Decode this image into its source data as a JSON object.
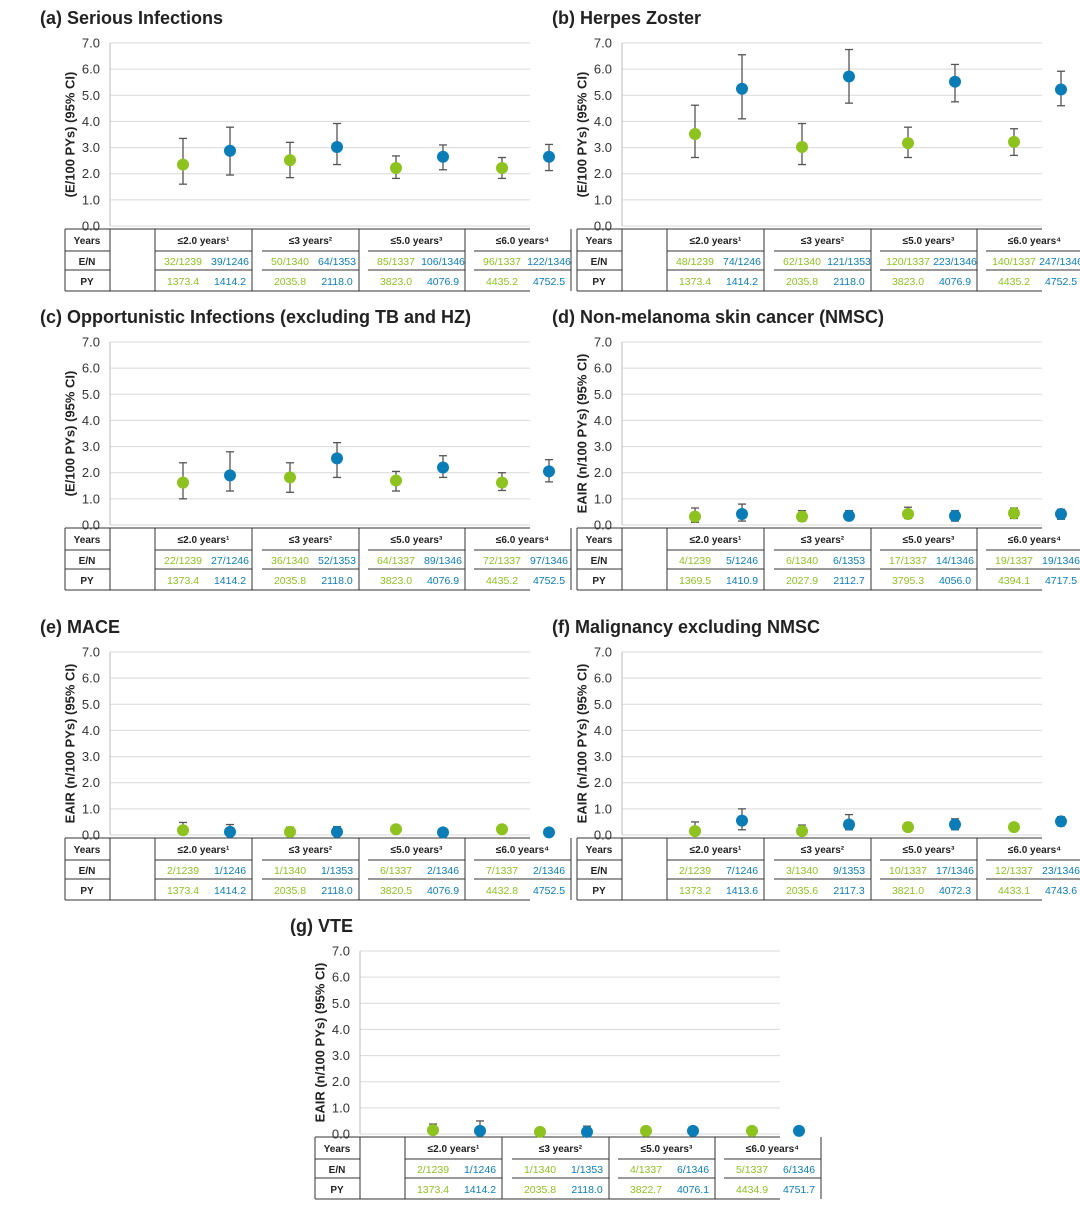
{
  "colors": {
    "green": "#8dc21f",
    "blue": "#0a7db7",
    "grid": "#d9d9d9",
    "errbar": "#555555"
  },
  "row_labels": {
    "years": "Years",
    "en": "E/N",
    "py": "PY"
  },
  "chart_data": [
    {
      "id": "a",
      "type": "scatter",
      "title": "(a) Serious Infections",
      "ylabel": "(E/100 PYs) (95% CI)",
      "ylim": [
        0,
        7
      ],
      "grid": true,
      "yticks": [
        "0.0",
        "1.0",
        "2.0",
        "3.0",
        "4.0",
        "5.0",
        "6.0",
        "7.0"
      ],
      "categories": [
        "≤2.0 years¹",
        "≤3 years²",
        "≤5.0 years³",
        "≤6.0 years⁴"
      ],
      "series": [
        {
          "color": "green",
          "values": [
            2.35,
            2.52,
            2.22,
            2.22
          ],
          "lo": [
            1.6,
            1.85,
            1.82,
            1.82
          ],
          "hi": [
            3.35,
            3.2,
            2.68,
            2.62
          ]
        },
        {
          "color": "blue",
          "values": [
            2.88,
            3.02,
            2.65,
            2.65
          ],
          "lo": [
            1.95,
            2.35,
            2.15,
            2.12
          ],
          "hi": [
            3.78,
            3.92,
            3.1,
            3.12
          ]
        }
      ],
      "table": {
        "en": [
          [
            "32/1239",
            "39/1246"
          ],
          [
            "50/1340",
            "64/1353"
          ],
          [
            "85/1337",
            "106/1346"
          ],
          [
            "96/1337",
            "122/1346"
          ]
        ],
        "py": [
          [
            "1373.4",
            "1414.2"
          ],
          [
            "2035.8",
            "2118.0"
          ],
          [
            "3823.0",
            "4076.9"
          ],
          [
            "4435.2",
            "4752.5"
          ]
        ]
      }
    },
    {
      "id": "b",
      "type": "scatter",
      "title": "(b) Herpes Zoster",
      "ylabel": "(E/100 PYs) (95% CI)",
      "ylim": [
        0,
        7
      ],
      "grid": true,
      "yticks": [
        "0.0",
        "1.0",
        "2.0",
        "3.0",
        "4.0",
        "5.0",
        "6.0",
        "7.0"
      ],
      "categories": [
        "≤2.0 years¹",
        "≤3 years²",
        "≤5.0 years³",
        "≤6.0 years⁴"
      ],
      "series": [
        {
          "color": "green",
          "values": [
            3.52,
            3.02,
            3.17,
            3.22
          ],
          "lo": [
            2.62,
            2.35,
            2.62,
            2.7
          ],
          "hi": [
            4.62,
            3.92,
            3.78,
            3.72
          ]
        },
        {
          "color": "blue",
          "values": [
            5.25,
            5.72,
            5.52,
            5.22
          ],
          "lo": [
            4.1,
            4.7,
            4.75,
            4.6
          ],
          "hi": [
            6.55,
            6.75,
            6.18,
            5.92
          ]
        }
      ],
      "table": {
        "en": [
          [
            "48/1239",
            "74/1246"
          ],
          [
            "62/1340",
            "121/1353"
          ],
          [
            "120/1337",
            "223/1346"
          ],
          [
            "140/1337",
            "247/1346"
          ]
        ],
        "py": [
          [
            "1373.4",
            "1414.2"
          ],
          [
            "2035.8",
            "2118.0"
          ],
          [
            "3823.0",
            "4076.9"
          ],
          [
            "4435.2",
            "4752.5"
          ]
        ]
      }
    },
    {
      "id": "c",
      "type": "scatter",
      "title": "(c) Opportunistic Infections (excluding TB and HZ)",
      "ylabel": "(E/100 PYs) (95% CI)",
      "ylim": [
        0,
        7
      ],
      "grid": true,
      "yticks": [
        "0.0",
        "1.0",
        "2.0",
        "3.0",
        "4.0",
        "5.0",
        "6.0",
        "7.0"
      ],
      "categories": [
        "≤2.0 years¹",
        "≤3 years²",
        "≤5.0 years³",
        "≤6.0 years⁴"
      ],
      "series": [
        {
          "color": "green",
          "values": [
            1.62,
            1.82,
            1.7,
            1.62
          ],
          "lo": [
            1.0,
            1.25,
            1.3,
            1.32
          ],
          "hi": [
            2.38,
            2.38,
            2.05,
            2.0
          ]
        },
        {
          "color": "blue",
          "values": [
            1.9,
            2.55,
            2.2,
            2.05
          ],
          "lo": [
            1.3,
            1.82,
            1.82,
            1.65
          ],
          "hi": [
            2.8,
            3.15,
            2.65,
            2.5
          ]
        }
      ],
      "table": {
        "en": [
          [
            "22/1239",
            "27/1246"
          ],
          [
            "36/1340",
            "52/1353"
          ],
          [
            "64/1337",
            "89/1346"
          ],
          [
            "72/1337",
            "97/1346"
          ]
        ],
        "py": [
          [
            "1373.4",
            "1414.2"
          ],
          [
            "2035.8",
            "2118.0"
          ],
          [
            "3823.0",
            "4076.9"
          ],
          [
            "4435.2",
            "4752.5"
          ]
        ]
      }
    },
    {
      "id": "d",
      "type": "scatter",
      "title": "(d) Non-melanoma skin cancer (NMSC)",
      "ylabel": "EAIR (n/100 PYs) (95% CI)",
      "ylim": [
        0,
        7
      ],
      "grid": true,
      "yticks": [
        "0.0",
        "1.0",
        "2.0",
        "3.0",
        "4.0",
        "5.0",
        "6.0",
        "7.0"
      ],
      "categories": [
        "≤2.0 years¹",
        "≤3 years²",
        "≤5.0 years³",
        "≤6.0 years⁴"
      ],
      "series": [
        {
          "color": "green",
          "values": [
            0.32,
            0.32,
            0.42,
            0.45
          ],
          "lo": [
            0.1,
            0.15,
            0.25,
            0.25
          ],
          "hi": [
            0.65,
            0.55,
            0.68,
            0.65
          ]
        },
        {
          "color": "blue",
          "values": [
            0.42,
            0.35,
            0.35,
            0.42
          ],
          "lo": [
            0.15,
            0.2,
            0.15,
            0.22
          ],
          "hi": [
            0.8,
            0.55,
            0.55,
            0.6
          ]
        }
      ],
      "table": {
        "en": [
          [
            "4/1239",
            "5/1246"
          ],
          [
            "6/1340",
            "6/1353"
          ],
          [
            "17/1337",
            "14/1346"
          ],
          [
            "19/1337",
            "19/1346"
          ]
        ],
        "py": [
          [
            "1369.5",
            "1410.9"
          ],
          [
            "2027.9",
            "2112.7"
          ],
          [
            "3795.3",
            "4056.0"
          ],
          [
            "4394.1",
            "4717.5"
          ]
        ]
      }
    },
    {
      "id": "e",
      "type": "scatter",
      "title": "(e) MACE",
      "ylabel": "EAIR (n/100 PYs) (95% CI)",
      "ylim": [
        0,
        7
      ],
      "grid": true,
      "yticks": [
        "0.0",
        "1.0",
        "2.0",
        "3.0",
        "4.0",
        "5.0",
        "6.0",
        "7.0"
      ],
      "categories": [
        "≤2.0 years¹",
        "≤3 years²",
        "≤5.0 years³",
        "≤6.0 years⁴"
      ],
      "series": [
        {
          "color": "green",
          "values": [
            0.18,
            0.12,
            0.22,
            0.22
          ],
          "lo": [
            0.05,
            0.02,
            0.1,
            0.12
          ],
          "hi": [
            0.48,
            0.3,
            0.32,
            0.32
          ]
        },
        {
          "color": "blue",
          "values": [
            0.12,
            0.12,
            0.1,
            0.1
          ],
          "lo": [
            0.02,
            0.02,
            0.02,
            0.02
          ],
          "hi": [
            0.4,
            0.32,
            0.2,
            0.2
          ]
        }
      ],
      "table": {
        "en": [
          [
            "2/1239",
            "1/1246"
          ],
          [
            "1/1340",
            "1/1353"
          ],
          [
            "6/1337",
            "2/1346"
          ],
          [
            "7/1337",
            "2/1346"
          ]
        ],
        "py": [
          [
            "1373.4",
            "1414.2"
          ],
          [
            "2035.8",
            "2118.0"
          ],
          [
            "3820.5",
            "4076.9"
          ],
          [
            "4432.8",
            "4752.5"
          ]
        ]
      }
    },
    {
      "id": "f",
      "type": "scatter",
      "title": "(f) Malignancy excluding NMSC",
      "ylabel": "EAIR (n/100 PYs) (95% CI)",
      "ylim": [
        0,
        7
      ],
      "grid": true,
      "yticks": [
        "0.0",
        "1.0",
        "2.0",
        "3.0",
        "4.0",
        "5.0",
        "6.0",
        "7.0"
      ],
      "categories": [
        "≤2.0 years¹",
        "≤3 years²",
        "≤5.0 years³",
        "≤6.0 years⁴"
      ],
      "series": [
        {
          "color": "green",
          "values": [
            0.15,
            0.15,
            0.3,
            0.3
          ],
          "lo": [
            0.02,
            0.05,
            0.15,
            0.15
          ],
          "hi": [
            0.5,
            0.38,
            0.45,
            0.45
          ]
        },
        {
          "color": "blue",
          "values": [
            0.55,
            0.4,
            0.4,
            0.52
          ],
          "lo": [
            0.2,
            0.2,
            0.2,
            0.35
          ],
          "hi": [
            1.0,
            0.78,
            0.62,
            0.7
          ]
        }
      ],
      "table": {
        "en": [
          [
            "2/1239",
            "7/1246"
          ],
          [
            "3/1340",
            "9/1353"
          ],
          [
            "10/1337",
            "17/1346"
          ],
          [
            "12/1337",
            "23/1346"
          ]
        ],
        "py": [
          [
            "1373.2",
            "1413.6"
          ],
          [
            "2035.6",
            "2117.3"
          ],
          [
            "3821.0",
            "4072.3"
          ],
          [
            "4433.1",
            "4743.6"
          ]
        ]
      }
    },
    {
      "id": "g",
      "type": "scatter",
      "title": "(g) VTE",
      "ylabel": "EAIR (n/100 PYs) (95% CI)",
      "ylim": [
        0,
        7
      ],
      "grid": true,
      "yticks": [
        "0.0",
        "1.0",
        "2.0",
        "3.0",
        "4.0",
        "5.0",
        "6.0",
        "7.0"
      ],
      "categories": [
        "≤2.0 years¹",
        "≤3 years²",
        "≤5.0 years³",
        "≤6.0 years⁴"
      ],
      "series": [
        {
          "color": "green",
          "values": [
            0.15,
            0.08,
            0.12,
            0.12
          ],
          "lo": [
            0.02,
            0.02,
            0.05,
            0.05
          ],
          "hi": [
            0.38,
            0.22,
            0.25,
            0.22
          ]
        },
        {
          "color": "blue",
          "values": [
            0.12,
            0.08,
            0.12,
            0.12
          ],
          "lo": [
            0.02,
            0.02,
            0.05,
            0.05
          ],
          "hi": [
            0.5,
            0.3,
            0.22,
            0.22
          ]
        }
      ],
      "table": {
        "en": [
          [
            "2/1239",
            "1/1246"
          ],
          [
            "1/1340",
            "1/1353"
          ],
          [
            "4/1337",
            "6/1346"
          ],
          [
            "5/1337",
            "6/1346"
          ]
        ],
        "py": [
          [
            "1373.4",
            "1414.2"
          ],
          [
            "2035.8",
            "2118.0"
          ],
          [
            "3822.7",
            "4076.1"
          ],
          [
            "4434.9",
            "4751.7"
          ]
        ]
      }
    }
  ]
}
